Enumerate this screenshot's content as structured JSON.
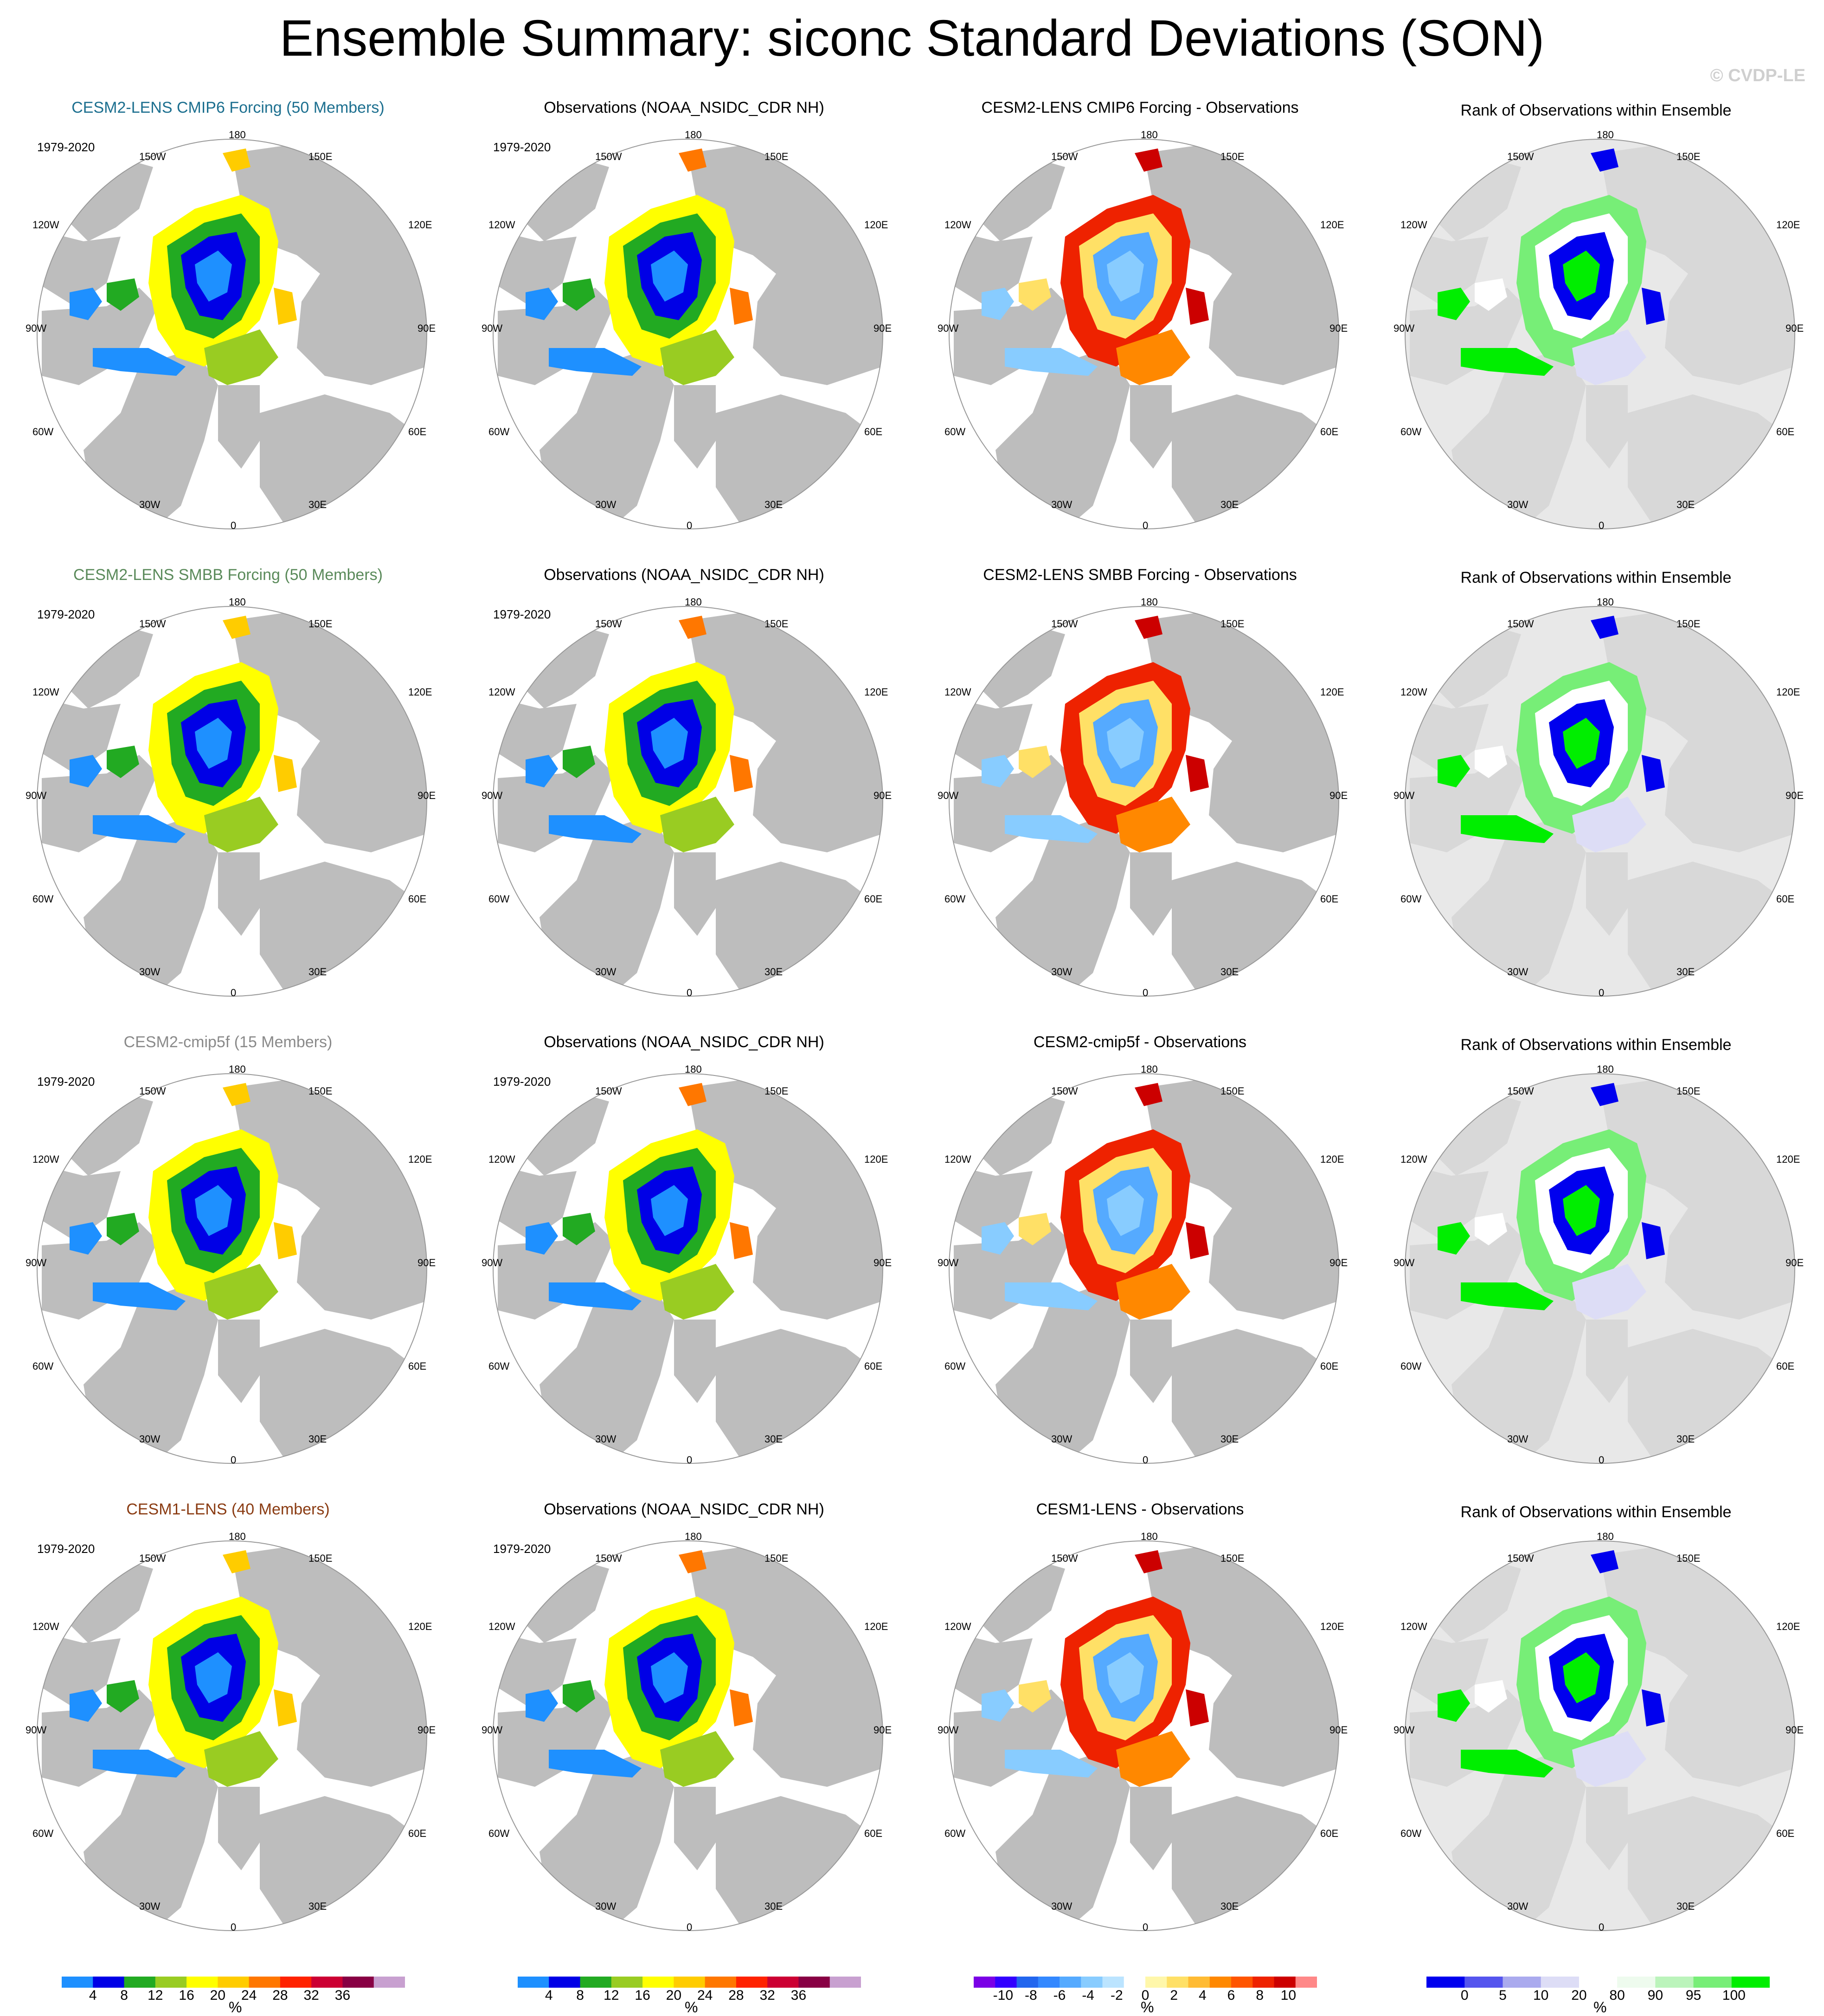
{
  "title": "Ensemble Summary: siconc Standard Deviations (SON)",
  "watermark": "© CVDP-LE",
  "period": "1979-2020",
  "lon_labels": {
    "n": "180",
    "nw": "150W",
    "ne": "150E",
    "wnw": "120W",
    "ene": "120E",
    "w": "90W",
    "e": "90E",
    "wsw": "60W",
    "ese": "60E",
    "sw": "30W",
    "se": "30E",
    "s": "0"
  },
  "rows": [
    {
      "model_title": "CESM2-LENS CMIP6 Forcing (50 Members)",
      "model_color": "#1c6f8f",
      "obs_title": "Observations (NOAA_NSIDC_CDR NH)",
      "diff_title": "CESM2-LENS CMIP6 Forcing - Observations",
      "rank_title": "Rank of Observations within Ensemble"
    },
    {
      "model_title": "CESM2-LENS SMBB Forcing (50 Members)",
      "model_color": "#5a8a5a",
      "obs_title": "Observations (NOAA_NSIDC_CDR NH)",
      "diff_title": "CESM2-LENS SMBB Forcing - Observations",
      "rank_title": "Rank of Observations within Ensemble"
    },
    {
      "model_title": "CESM2-cmip5f (15 Members)",
      "model_color": "#8a8a8a",
      "obs_title": "Observations (NOAA_NSIDC_CDR NH)",
      "diff_title": "CESM2-cmip5f - Observations",
      "rank_title": "Rank of Observations within Ensemble"
    },
    {
      "model_title": "CESM1-LENS (40 Members)",
      "model_color": "#8a3b12",
      "obs_title": "Observations (NOAA_NSIDC_CDR NH)",
      "diff_title": "CESM1-LENS - Observations",
      "rank_title": "Rank of Observations within Ensemble"
    }
  ],
  "colorbars": {
    "std": {
      "labels": [
        "4",
        "8",
        "12",
        "16",
        "20",
        "24",
        "28",
        "32",
        "36"
      ],
      "unit": "%",
      "colors": [
        "#1e90ff",
        "#0000e6",
        "#22aa22",
        "#99cc22",
        "#ffff00",
        "#ffcc00",
        "#ff7700",
        "#ff2200",
        "#cc0033",
        "#880044",
        "#c8a0d0"
      ]
    },
    "diff": {
      "labels": [
        "-10",
        "-8",
        "-6",
        "-4",
        "-2",
        "0",
        "2",
        "4",
        "6",
        "8",
        "10"
      ],
      "unit": "%",
      "colors": [
        "#7a00e6",
        "#3300ff",
        "#2266ee",
        "#3388ff",
        "#55aaff",
        "#88ccff",
        "#bbe4ff",
        "#ffffff",
        "#fff7aa",
        "#ffe066",
        "#ffbb33",
        "#ff8800",
        "#ff5500",
        "#ee2200",
        "#cc0000",
        "#ff8888"
      ]
    },
    "rank": {
      "labels": [
        "0",
        "5",
        "10",
        "20",
        "80",
        "90",
        "95",
        "100"
      ],
      "unit": "%",
      "colors": [
        "#0000ee",
        "#5555ee",
        "#aaaaee",
        "#ddddf6",
        "#ffffff",
        "#eefbee",
        "#bbf4bb",
        "#77ee77",
        "#00ee00"
      ]
    }
  }
}
